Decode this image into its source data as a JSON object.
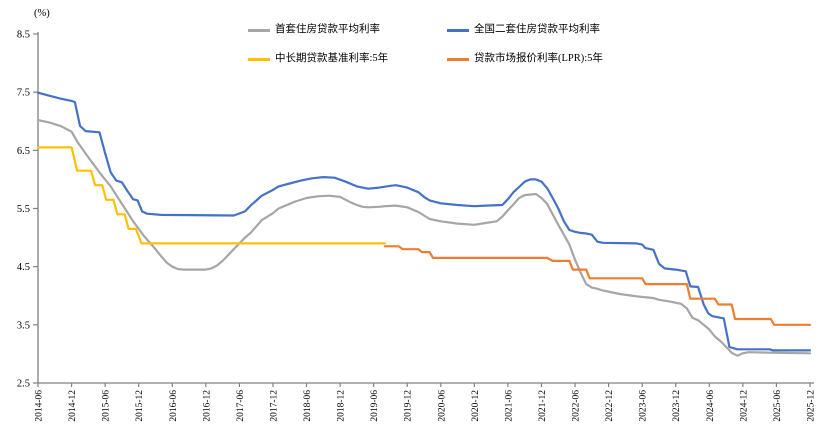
{
  "chart_data": {
    "type": "line",
    "title": "",
    "ylabel": "(%)",
    "xlabel": "",
    "grid": false,
    "legend_position": "top-center, 2 columns x 2 rows",
    "ylim": [
      2.5,
      8.5
    ],
    "y_ticks": [
      "2.5",
      "3.5",
      "4.5",
      "5.5",
      "6.5",
      "7.5",
      "8.5"
    ],
    "x_months_total": 138,
    "x_tick_interval_months": 6,
    "x_tick_labels": [
      "2014-06",
      "2014-12",
      "2015-06",
      "2015-12",
      "2016-06",
      "2016-12",
      "2017-06",
      "2017-12",
      "2018-06",
      "2018-12",
      "2019-06",
      "2019-12",
      "2020-06",
      "2020-12",
      "2021-06",
      "2021-12",
      "2022-06",
      "2022-12",
      "2023-06",
      "2023-12",
      "2024-06",
      "2024-12",
      "2025-06",
      "2025-12"
    ],
    "axis_color": "#808080",
    "series": [
      {
        "name": "首套住房贷款平均利率",
        "color": "#a6a6a6",
        "points": [
          [
            0,
            7.02
          ],
          [
            2,
            6.98
          ],
          [
            4,
            6.92
          ],
          [
            6,
            6.82
          ],
          [
            7,
            6.65
          ],
          [
            9,
            6.38
          ],
          [
            11,
            6.12
          ],
          [
            13,
            5.88
          ],
          [
            15,
            5.58
          ],
          [
            17,
            5.28
          ],
          [
            19,
            5.02
          ],
          [
            21,
            4.8
          ],
          [
            22,
            4.68
          ],
          [
            23,
            4.57
          ],
          [
            24,
            4.5
          ],
          [
            25,
            4.46
          ],
          [
            26,
            4.45
          ],
          [
            30,
            4.45
          ],
          [
            31,
            4.47
          ],
          [
            32,
            4.52
          ],
          [
            33,
            4.6
          ],
          [
            34,
            4.7
          ],
          [
            35,
            4.8
          ],
          [
            36,
            4.9
          ],
          [
            37,
            5.0
          ],
          [
            38,
            5.08
          ],
          [
            40,
            5.3
          ],
          [
            42,
            5.42
          ],
          [
            43,
            5.5
          ],
          [
            45,
            5.58
          ],
          [
            46,
            5.62
          ],
          [
            48,
            5.68
          ],
          [
            50,
            5.71
          ],
          [
            52,
            5.72
          ],
          [
            54,
            5.7
          ],
          [
            55,
            5.65
          ],
          [
            56,
            5.6
          ],
          [
            57,
            5.56
          ],
          [
            58,
            5.53
          ],
          [
            59,
            5.52
          ],
          [
            61,
            5.53
          ],
          [
            62,
            5.54
          ],
          [
            64,
            5.55
          ],
          [
            66,
            5.52
          ],
          [
            68,
            5.44
          ],
          [
            70,
            5.32
          ],
          [
            72,
            5.28
          ],
          [
            75,
            5.24
          ],
          [
            78,
            5.22
          ],
          [
            80,
            5.25
          ],
          [
            82,
            5.28
          ],
          [
            83,
            5.36
          ],
          [
            84,
            5.47
          ],
          [
            85,
            5.57
          ],
          [
            86,
            5.68
          ],
          [
            87,
            5.73
          ],
          [
            89,
            5.75
          ],
          [
            90,
            5.68
          ],
          [
            91,
            5.58
          ],
          [
            92,
            5.4
          ],
          [
            93,
            5.22
          ],
          [
            94,
            5.05
          ],
          [
            95,
            4.88
          ],
          [
            96,
            4.62
          ],
          [
            97,
            4.4
          ],
          [
            98,
            4.2
          ],
          [
            99,
            4.14
          ],
          [
            100,
            4.12
          ],
          [
            101,
            4.09
          ],
          [
            104,
            4.03
          ],
          [
            107,
            3.99
          ],
          [
            109,
            3.97
          ],
          [
            110,
            3.96
          ],
          [
            111,
            3.93
          ],
          [
            113,
            3.9
          ],
          [
            115,
            3.86
          ],
          [
            116,
            3.78
          ],
          [
            117,
            3.62
          ],
          [
            118,
            3.58
          ],
          [
            119,
            3.5
          ],
          [
            120,
            3.42
          ],
          [
            121,
            3.3
          ],
          [
            122,
            3.22
          ],
          [
            123,
            3.12
          ],
          [
            124,
            3.02
          ],
          [
            125,
            2.97
          ],
          [
            126,
            3.01
          ],
          [
            127,
            3.03
          ],
          [
            132,
            3.02
          ],
          [
            138,
            3.01
          ]
        ]
      },
      {
        "name": "全国二套住房贷款平均利率",
        "color": "#4472c4",
        "points": [
          [
            0,
            7.49
          ],
          [
            2,
            7.44
          ],
          [
            4,
            7.39
          ],
          [
            6,
            7.35
          ],
          [
            6.6,
            7.33
          ],
          [
            7.5,
            6.92
          ],
          [
            8.5,
            6.83
          ],
          [
            11,
            6.81
          ],
          [
            12,
            6.45
          ],
          [
            13,
            6.12
          ],
          [
            14,
            5.98
          ],
          [
            15,
            5.95
          ],
          [
            16,
            5.8
          ],
          [
            17,
            5.66
          ],
          [
            17.8,
            5.64
          ],
          [
            18.6,
            5.45
          ],
          [
            19.5,
            5.41
          ],
          [
            22,
            5.39
          ],
          [
            35,
            5.38
          ],
          [
            37,
            5.45
          ],
          [
            38,
            5.55
          ],
          [
            40,
            5.72
          ],
          [
            42,
            5.82
          ],
          [
            43,
            5.88
          ],
          [
            45,
            5.93
          ],
          [
            47,
            5.98
          ],
          [
            49,
            6.02
          ],
          [
            51,
            6.04
          ],
          [
            53,
            6.03
          ],
          [
            55,
            5.96
          ],
          [
            57,
            5.88
          ],
          [
            59,
            5.84
          ],
          [
            61,
            5.86
          ],
          [
            63,
            5.89
          ],
          [
            64,
            5.9
          ],
          [
            66,
            5.86
          ],
          [
            68,
            5.78
          ],
          [
            69,
            5.7
          ],
          [
            70,
            5.64
          ],
          [
            72,
            5.59
          ],
          [
            75,
            5.56
          ],
          [
            78,
            5.54
          ],
          [
            80,
            5.55
          ],
          [
            83,
            5.56
          ],
          [
            84,
            5.66
          ],
          [
            85,
            5.78
          ],
          [
            86,
            5.87
          ],
          [
            87,
            5.96
          ],
          [
            88,
            6.0
          ],
          [
            89,
            6.0
          ],
          [
            90,
            5.96
          ],
          [
            91,
            5.85
          ],
          [
            92,
            5.68
          ],
          [
            93,
            5.5
          ],
          [
            94,
            5.28
          ],
          [
            95,
            5.13
          ],
          [
            96,
            5.1
          ],
          [
            97,
            5.08
          ],
          [
            98,
            5.07
          ],
          [
            99,
            5.05
          ],
          [
            100,
            4.93
          ],
          [
            101,
            4.91
          ],
          [
            107,
            4.9
          ],
          [
            108,
            4.88
          ],
          [
            108.6,
            4.82
          ],
          [
            110,
            4.79
          ],
          [
            111,
            4.55
          ],
          [
            112,
            4.47
          ],
          [
            114,
            4.45
          ],
          [
            115.8,
            4.42
          ],
          [
            116.6,
            4.16
          ],
          [
            118,
            4.15
          ],
          [
            119,
            3.85
          ],
          [
            119.8,
            3.7
          ],
          [
            120.5,
            3.65
          ],
          [
            122.6,
            3.61
          ],
          [
            123.6,
            3.12
          ],
          [
            125,
            3.08
          ],
          [
            130.8,
            3.08
          ],
          [
            131.4,
            3.06
          ],
          [
            138,
            3.06
          ]
        ]
      },
      {
        "name": "中长期贷款基准利率:5年",
        "color": "#ffc000",
        "points": [
          [
            0,
            6.55
          ],
          [
            6,
            6.55
          ],
          [
            7,
            6.15
          ],
          [
            9.5,
            6.15
          ],
          [
            10.2,
            5.9
          ],
          [
            11.5,
            5.9
          ],
          [
            12.2,
            5.65
          ],
          [
            13.5,
            5.65
          ],
          [
            14.2,
            5.4
          ],
          [
            15.5,
            5.4
          ],
          [
            16.2,
            5.15
          ],
          [
            17.5,
            5.15
          ],
          [
            18.5,
            4.9
          ],
          [
            62,
            4.9
          ]
        ]
      },
      {
        "name": "贷款市场报价利率(LPR):5年",
        "color": "#ed7d31",
        "points": [
          [
            62,
            4.85
          ],
          [
            64.5,
            4.85
          ],
          [
            65.2,
            4.8
          ],
          [
            68,
            4.8
          ],
          [
            68.6,
            4.75
          ],
          [
            70,
            4.75
          ],
          [
            70.6,
            4.65
          ],
          [
            91,
            4.65
          ],
          [
            92,
            4.6
          ],
          [
            95,
            4.6
          ],
          [
            95.6,
            4.45
          ],
          [
            98,
            4.45
          ],
          [
            98.6,
            4.3
          ],
          [
            108,
            4.3
          ],
          [
            108.6,
            4.2
          ],
          [
            116,
            4.2
          ],
          [
            116.6,
            3.95
          ],
          [
            121,
            3.95
          ],
          [
            121.6,
            3.85
          ],
          [
            124,
            3.85
          ],
          [
            124.6,
            3.6
          ],
          [
            131,
            3.6
          ],
          [
            131.6,
            3.5
          ],
          [
            138,
            3.5
          ]
        ]
      }
    ]
  }
}
